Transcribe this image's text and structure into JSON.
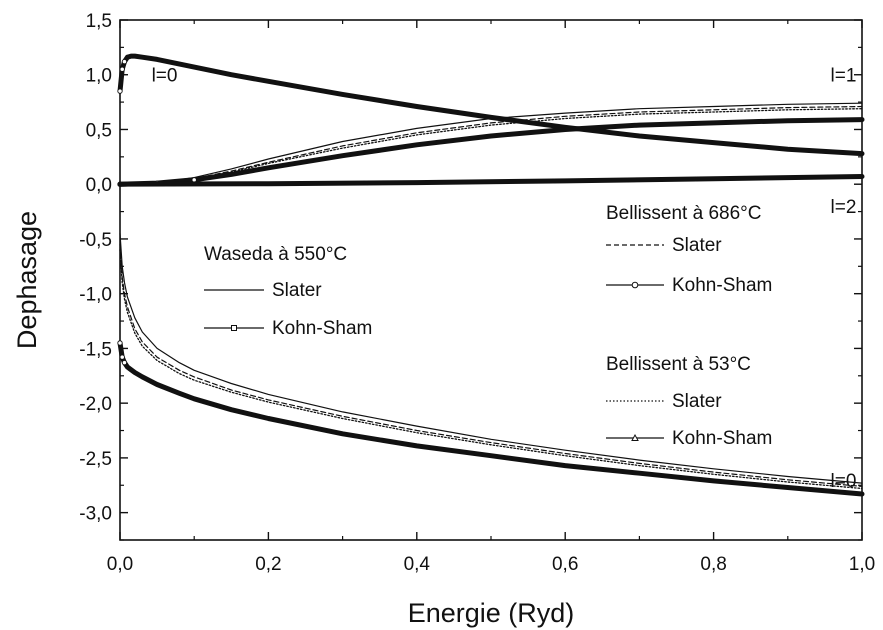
{
  "chart_data": {
    "type": "line",
    "xlabel": "Energie (Ryd)",
    "ylabel": "Dephasage",
    "xlim": [
      0.0,
      1.0
    ],
    "ylim": [
      -3.25,
      1.5
    ],
    "x_ticks": [
      "0,0",
      "0,2",
      "0,4",
      "0,6",
      "0,8",
      "1,0"
    ],
    "y_ticks": [
      "1,5",
      "1,0",
      "0,5",
      "0,0",
      "-0,5",
      "-1,0",
      "-1,5",
      "-2,0",
      "-2,5",
      "-3,0"
    ],
    "annotations": [
      {
        "text": "l=0",
        "x": 0.06,
        "y": 1.0
      },
      {
        "text": "l=1",
        "x": 0.975,
        "y": 1.0
      },
      {
        "text": "l=2",
        "x": 0.975,
        "y": -0.2
      },
      {
        "text": "l=0",
        "x": 0.975,
        "y": -2.7
      }
    ],
    "legend_groups": [
      {
        "title": "Waseda à 550°C",
        "entries": [
          {
            "label": "Slater",
            "style": "solid-thin"
          },
          {
            "label": "Kohn-Sham",
            "style": "square-marker"
          }
        ]
      },
      {
        "title": "Bellissent à 686°C",
        "entries": [
          {
            "label": "Slater",
            "style": "dashed"
          },
          {
            "label": "Kohn-Sham",
            "style": "circle-marker"
          }
        ]
      },
      {
        "title": "Bellissent à 53°C",
        "entries": [
          {
            "label": "Slater",
            "style": "dotted"
          },
          {
            "label": "Kohn-Sham",
            "style": "triangle-marker"
          }
        ]
      }
    ],
    "series": [
      {
        "group": "l0_pos",
        "style": "thick",
        "x": [
          0.0,
          0.003,
          0.006,
          0.01,
          0.015,
          0.02,
          0.03,
          0.05,
          0.1,
          0.15,
          0.2,
          0.3,
          0.4,
          0.5,
          0.6,
          0.7,
          0.8,
          0.9,
          1.0
        ],
        "y": [
          0.85,
          1.05,
          1.12,
          1.16,
          1.17,
          1.17,
          1.16,
          1.14,
          1.07,
          1.0,
          0.94,
          0.82,
          0.71,
          0.61,
          0.52,
          0.44,
          0.38,
          0.32,
          0.28
        ]
      },
      {
        "group": "l1",
        "style": "solid-thin",
        "x": [
          0.0,
          0.05,
          0.1,
          0.15,
          0.2,
          0.3,
          0.4,
          0.5,
          0.6,
          0.7,
          0.8,
          0.9,
          1.0
        ],
        "y": [
          0.0,
          0.01,
          0.06,
          0.14,
          0.23,
          0.39,
          0.51,
          0.6,
          0.65,
          0.69,
          0.71,
          0.73,
          0.74
        ]
      },
      {
        "group": "l1",
        "style": "dashed",
        "x": [
          0.0,
          0.05,
          0.1,
          0.15,
          0.2,
          0.3,
          0.4,
          0.5,
          0.6,
          0.7,
          0.8,
          0.9,
          1.0
        ],
        "y": [
          0.0,
          0.01,
          0.05,
          0.12,
          0.2,
          0.35,
          0.47,
          0.56,
          0.62,
          0.66,
          0.68,
          0.7,
          0.71
        ]
      },
      {
        "group": "l1",
        "style": "dotted",
        "x": [
          0.0,
          0.05,
          0.1,
          0.15,
          0.2,
          0.3,
          0.4,
          0.5,
          0.6,
          0.7,
          0.8,
          0.9,
          1.0
        ],
        "y": [
          0.0,
          0.01,
          0.05,
          0.11,
          0.19,
          0.33,
          0.45,
          0.54,
          0.6,
          0.64,
          0.66,
          0.68,
          0.69
        ]
      },
      {
        "group": "l1",
        "style": "thick",
        "x": [
          0.0,
          0.05,
          0.1,
          0.15,
          0.2,
          0.3,
          0.4,
          0.5,
          0.6,
          0.7,
          0.8,
          0.9,
          1.0
        ],
        "y": [
          0.0,
          0.01,
          0.04,
          0.09,
          0.15,
          0.26,
          0.36,
          0.44,
          0.5,
          0.54,
          0.56,
          0.58,
          0.59
        ]
      },
      {
        "group": "l2",
        "style": "thick",
        "x": [
          0.0,
          0.2,
          0.4,
          0.6,
          0.8,
          1.0
        ],
        "y": [
          0.0,
          0.005,
          0.015,
          0.03,
          0.05,
          0.07
        ]
      },
      {
        "group": "l0_neg",
        "style": "solid-thin",
        "x": [
          0.0,
          0.003,
          0.006,
          0.01,
          0.02,
          0.03,
          0.05,
          0.08,
          0.1,
          0.15,
          0.2,
          0.3,
          0.4,
          0.5,
          0.6,
          0.7,
          0.8,
          0.9,
          1.0
        ],
        "y": [
          -0.45,
          -0.75,
          -0.9,
          -1.03,
          -1.22,
          -1.35,
          -1.5,
          -1.63,
          -1.7,
          -1.82,
          -1.92,
          -2.08,
          -2.21,
          -2.33,
          -2.43,
          -2.52,
          -2.6,
          -2.67,
          -2.73
        ]
      },
      {
        "group": "l0_neg",
        "style": "dashed",
        "x": [
          0.0,
          0.003,
          0.006,
          0.01,
          0.02,
          0.03,
          0.05,
          0.08,
          0.1,
          0.15,
          0.2,
          0.3,
          0.4,
          0.5,
          0.6,
          0.7,
          0.8,
          0.9,
          1.0
        ],
        "y": [
          -0.55,
          -0.85,
          -1.0,
          -1.12,
          -1.32,
          -1.44,
          -1.58,
          -1.7,
          -1.76,
          -1.88,
          -1.97,
          -2.12,
          -2.25,
          -2.36,
          -2.46,
          -2.55,
          -2.63,
          -2.7,
          -2.76
        ]
      },
      {
        "group": "l0_neg",
        "style": "dotted",
        "x": [
          0.0,
          0.003,
          0.006,
          0.01,
          0.02,
          0.03,
          0.05,
          0.08,
          0.1,
          0.15,
          0.2,
          0.3,
          0.4,
          0.5,
          0.6,
          0.7,
          0.8,
          0.9,
          1.0
        ],
        "y": [
          -0.6,
          -0.9,
          -1.05,
          -1.17,
          -1.36,
          -1.48,
          -1.61,
          -1.73,
          -1.79,
          -1.9,
          -1.99,
          -2.14,
          -2.27,
          -2.38,
          -2.48,
          -2.57,
          -2.65,
          -2.72,
          -2.78
        ]
      },
      {
        "group": "l0_neg",
        "style": "thick",
        "x": [
          0.0,
          0.003,
          0.006,
          0.01,
          0.02,
          0.03,
          0.05,
          0.08,
          0.1,
          0.15,
          0.2,
          0.3,
          0.4,
          0.5,
          0.6,
          0.7,
          0.8,
          0.9,
          1.0
        ],
        "y": [
          -1.45,
          -1.58,
          -1.63,
          -1.67,
          -1.72,
          -1.76,
          -1.83,
          -1.91,
          -1.96,
          -2.06,
          -2.14,
          -2.28,
          -2.39,
          -2.48,
          -2.57,
          -2.64,
          -2.71,
          -2.77,
          -2.83
        ]
      }
    ]
  }
}
